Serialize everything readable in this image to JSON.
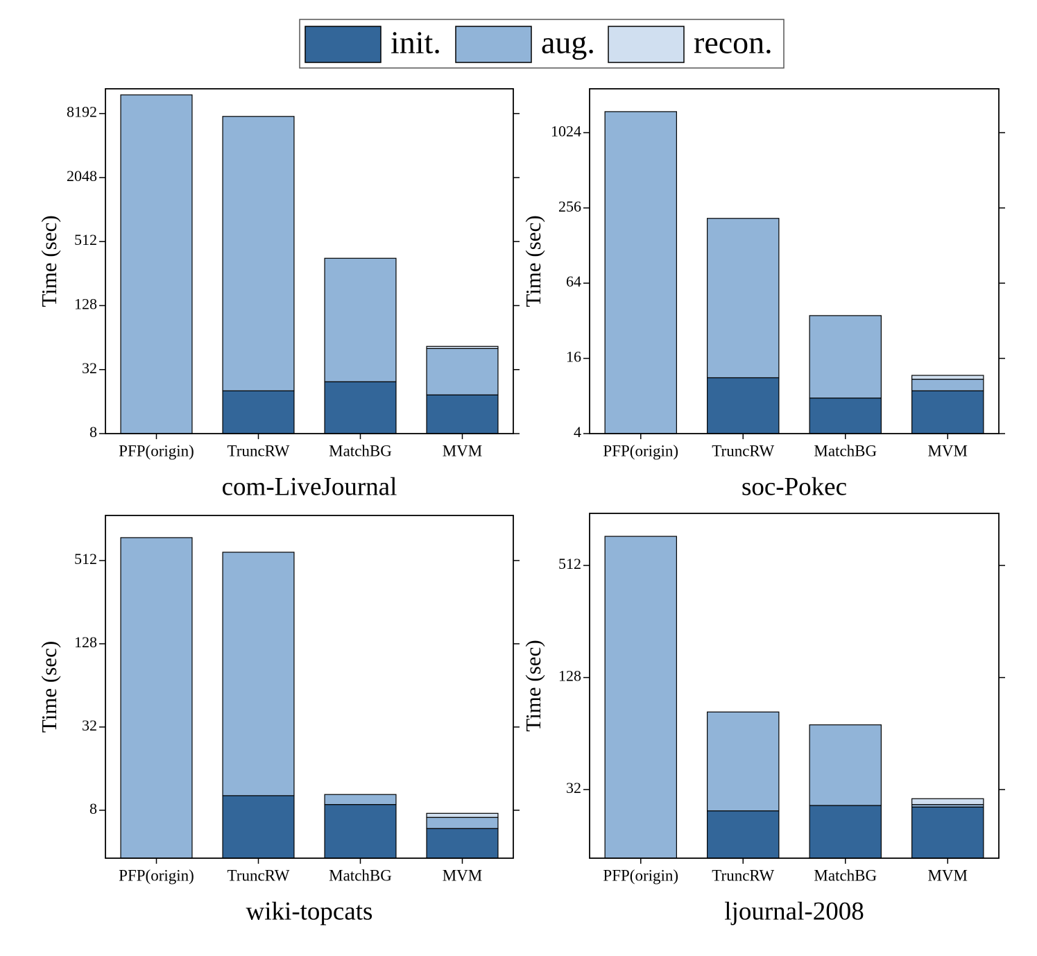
{
  "chart_data": [
    {
      "type": "bar",
      "stacked": true,
      "log_base": 2,
      "title": "com-LiveJournal",
      "y_label": "Time (sec)",
      "categories": [
        "PFP(origin)",
        "TruncRW",
        "MatchBG",
        "MVM"
      ],
      "series": [
        {
          "name": "init.",
          "color": "#336699",
          "values": [
            0,
            20.2,
            24.6,
            18.5
          ]
        },
        {
          "name": "aug.",
          "color": "#91b4d8",
          "values": [
            12270,
            7680,
            332,
            32
          ]
        },
        {
          "name": "recon.",
          "color": "#d0dff0",
          "values": [
            0,
            0,
            0,
            2.4
          ]
        }
      ],
      "ylim": [
        8,
        14000
      ],
      "yticks": [
        8,
        32,
        128,
        512,
        2048,
        8192
      ]
    },
    {
      "type": "bar",
      "stacked": true,
      "log_base": 2,
      "title": "soc-Pokec",
      "y_label": "Time (sec)",
      "categories": [
        "PFP(origin)",
        "TruncRW",
        "MatchBG",
        "MVM"
      ],
      "series": [
        {
          "name": "init.",
          "color": "#336699",
          "values": [
            0,
            11.2,
            7.7,
            8.8
          ]
        },
        {
          "name": "aug.",
          "color": "#91b4d8",
          "values": [
            1510,
            200,
            27.5,
            2.1
          ]
        },
        {
          "name": "recon.",
          "color": "#d0dff0",
          "values": [
            0,
            0,
            0,
            0.8
          ]
        }
      ],
      "ylim": [
        4,
        2300
      ],
      "yticks": [
        4,
        16,
        64,
        256,
        1024
      ]
    },
    {
      "type": "bar",
      "stacked": true,
      "log_base": 2,
      "title": "wiki-topcats",
      "y_label": "Time (sec)",
      "categories": [
        "PFP(origin)",
        "TruncRW",
        "MatchBG",
        "MVM"
      ],
      "series": [
        {
          "name": "init.",
          "color": "#336699",
          "values": [
            0,
            10.2,
            8.8,
            5.9
          ]
        },
        {
          "name": "aug.",
          "color": "#91b4d8",
          "values": [
            750,
            578,
            1.6,
            1.2
          ]
        },
        {
          "name": "recon.",
          "color": "#d0dff0",
          "values": [
            0,
            0,
            0,
            0.5
          ]
        }
      ],
      "ylim": [
        3.6,
        1085
      ],
      "yticks": [
        8,
        32,
        128,
        512
      ]
    },
    {
      "type": "bar",
      "stacked": true,
      "log_base": 2,
      "title": "ljournal-2008",
      "y_label": "Time (sec)",
      "categories": [
        "PFP(origin)",
        "TruncRW",
        "MatchBG",
        "MVM"
      ],
      "series": [
        {
          "name": "init.",
          "color": "#336699",
          "values": [
            0,
            24.6,
            26.3,
            25.8
          ]
        },
        {
          "name": "aug.",
          "color": "#91b4d8",
          "values": [
            734,
            59,
            45,
            0.8
          ]
        },
        {
          "name": "recon.",
          "color": "#d0dff0",
          "values": [
            0,
            0,
            0,
            2.0
          ]
        }
      ],
      "ylim": [
        13.7,
        975
      ],
      "yticks": [
        32,
        128,
        512
      ]
    }
  ]
}
